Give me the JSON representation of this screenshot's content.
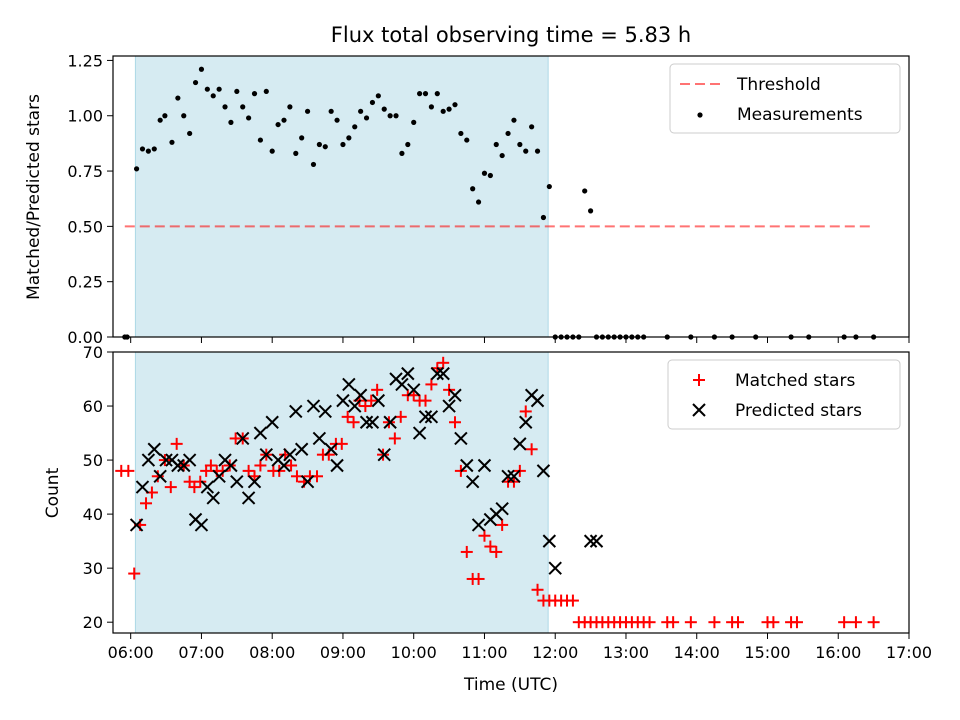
{
  "title": "Flux total observing time = 5.83 h",
  "colors": {
    "shade": "#add8e6",
    "threshold": "#ff0000",
    "measurement": "#000000",
    "matched": "#ff0000",
    "predicted": "#000000"
  },
  "chart_data": [
    {
      "type": "scatter",
      "ylabel": "Matched/Predicted stars",
      "ylim": [
        0,
        1.27
      ],
      "yticks": [
        "0.00",
        "0.25",
        "0.50",
        "0.75",
        "1.00",
        "1.25"
      ],
      "yticks_values": [
        0,
        0.25,
        0.5,
        0.75,
        1.0,
        1.25
      ],
      "xlim": [
        "05:45",
        "17:00"
      ],
      "shaded_span": [
        "06:04",
        "11:54"
      ],
      "legend": {
        "placement": "top-right",
        "items": [
          "Threshold",
          "Measurements"
        ]
      },
      "threshold": {
        "name": "Threshold",
        "value": 0.5,
        "x_start": "05:55",
        "x_end": "16:30",
        "style": "dashed"
      },
      "series": [
        {
          "name": "Measurements",
          "marker": "dot",
          "x": [
            "05:55",
            "05:57",
            "06:05",
            "06:10",
            "06:15",
            "06:20",
            "06:25",
            "06:29",
            "06:35",
            "06:40",
            "06:45",
            "06:50",
            "06:55",
            "07:00",
            "07:05",
            "07:10",
            "07:15",
            "07:20",
            "07:25",
            "07:30",
            "07:35",
            "07:40",
            "07:45",
            "07:50",
            "07:55",
            "08:00",
            "08:05",
            "08:10",
            "08:15",
            "08:20",
            "08:25",
            "08:30",
            "08:35",
            "08:40",
            "08:45",
            "08:50",
            "08:55",
            "09:00",
            "09:05",
            "09:10",
            "09:15",
            "09:20",
            "09:25",
            "09:30",
            "09:35",
            "09:40",
            "09:45",
            "09:50",
            "09:55",
            "10:00",
            "10:05",
            "10:10",
            "10:15",
            "10:20",
            "10:25",
            "10:30",
            "10:35",
            "10:40",
            "10:45",
            "10:50",
            "10:55",
            "11:00",
            "11:05",
            "11:10",
            "11:15",
            "11:20",
            "11:25",
            "11:30",
            "11:35",
            "11:40",
            "11:45",
            "11:50",
            "11:55",
            "12:00",
            "12:05",
            "12:10",
            "12:15",
            "12:20",
            "12:25",
            "12:30",
            "12:35",
            "12:40",
            "12:45",
            "12:50",
            "12:55",
            "13:00",
            "13:05",
            "13:10",
            "13:15",
            "13:35",
            "13:55",
            "14:15",
            "14:30",
            "14:50",
            "15:20",
            "15:35",
            "16:05",
            "16:15",
            "16:30"
          ],
          "y": [
            0,
            0,
            0.76,
            0.85,
            0.84,
            0.85,
            0.98,
            1.0,
            0.88,
            1.08,
            1.0,
            0.92,
            1.15,
            1.21,
            1.12,
            1.09,
            1.12,
            1.04,
            0.97,
            1.11,
            1.04,
            0.99,
            1.1,
            0.89,
            1.11,
            0.84,
            0.96,
            0.98,
            1.04,
            0.83,
            0.9,
            1.02,
            0.78,
            0.87,
            0.86,
            1.02,
            0.98,
            0.87,
            0.9,
            0.95,
            1.02,
            0.99,
            1.06,
            1.09,
            1.03,
            1.0,
            1.0,
            0.83,
            0.87,
            0.97,
            1.1,
            1.1,
            1.04,
            1.1,
            1.02,
            1.03,
            1.05,
            0.92,
            0.89,
            0.67,
            0.61,
            0.74,
            0.73,
            0.87,
            0.82,
            0.92,
            0.98,
            0.87,
            0.84,
            0.95,
            0.84,
            0.54,
            0.68,
            0,
            0,
            0,
            0,
            0,
            0.66,
            0.57,
            0,
            0,
            0,
            0,
            0,
            0,
            0,
            0,
            0,
            0,
            0,
            0,
            0,
            0,
            0,
            0,
            0,
            0,
            0
          ]
        }
      ]
    },
    {
      "type": "scatter",
      "xlabel": "Time (UTC)",
      "ylabel": "Count",
      "ylim": [
        18,
        70
      ],
      "yticks": [
        "20",
        "30",
        "40",
        "50",
        "60",
        "70"
      ],
      "yticks_values": [
        20,
        30,
        40,
        50,
        60,
        70
      ],
      "xlim": [
        "05:45",
        "17:00"
      ],
      "xticks": [
        "06:00",
        "07:00",
        "08:00",
        "09:00",
        "10:00",
        "11:00",
        "12:00",
        "13:00",
        "14:00",
        "15:00",
        "16:00",
        "17:00"
      ],
      "shaded_span": [
        "06:04",
        "11:54"
      ],
      "legend": {
        "placement": "top-right",
        "items": [
          "Matched stars",
          "Predicted stars"
        ]
      },
      "series": [
        {
          "name": "Matched stars",
          "marker": "plus",
          "x": [
            "05:52",
            "05:58",
            "06:03",
            "06:08",
            "06:13",
            "06:18",
            "06:23",
            "06:29",
            "06:34",
            "06:39",
            "06:45",
            "06:50",
            "06:54",
            "06:59",
            "07:04",
            "07:08",
            "07:13",
            "07:18",
            "07:24",
            "07:29",
            "07:35",
            "07:40",
            "07:45",
            "07:50",
            "07:55",
            "08:01",
            "08:06",
            "08:11",
            "08:16",
            "08:21",
            "08:27",
            "08:32",
            "08:38",
            "08:43",
            "08:48",
            "08:54",
            "08:59",
            "09:04",
            "09:09",
            "09:14",
            "09:19",
            "09:24",
            "09:29",
            "09:34",
            "09:39",
            "09:44",
            "09:49",
            "09:55",
            "10:00",
            "10:05",
            "10:10",
            "10:15",
            "10:20",
            "10:25",
            "10:30",
            "10:35",
            "10:40",
            "10:45",
            "10:50",
            "10:55",
            "11:00",
            "11:05",
            "11:10",
            "11:15",
            "11:20",
            "11:25",
            "11:30",
            "11:35",
            "11:40",
            "11:45",
            "11:50",
            "11:55",
            "12:00",
            "12:05",
            "12:10",
            "12:15",
            "12:20",
            "12:25",
            "12:30",
            "12:35",
            "12:40",
            "12:45",
            "12:50",
            "12:55",
            "13:00",
            "13:05",
            "13:10",
            "13:15",
            "13:20",
            "13:35",
            "13:40",
            "13:55",
            "14:15",
            "14:30",
            "14:35",
            "15:00",
            "15:05",
            "15:20",
            "15:25",
            "16:05",
            "16:15",
            "16:30"
          ],
          "y": [
            48,
            48,
            29,
            38,
            42,
            44,
            47,
            50,
            45,
            53,
            49,
            46,
            45,
            46,
            48,
            49,
            48,
            48,
            49,
            54,
            54,
            48,
            47,
            49,
            51,
            48,
            48,
            51,
            49,
            47,
            46,
            47,
            47,
            51,
            51,
            53,
            53,
            58,
            57,
            61,
            60,
            61,
            63,
            51,
            57,
            54,
            58,
            62,
            62,
            61,
            61,
            64,
            67,
            68,
            63,
            57,
            48,
            33,
            28,
            28,
            36,
            34,
            33,
            38,
            46,
            46,
            48,
            59,
            52,
            26,
            24,
            24,
            24,
            24,
            24,
            24,
            20,
            20,
            20,
            20,
            20,
            20,
            20,
            20,
            20,
            20,
            20,
            20,
            20,
            20,
            20,
            20,
            20,
            20,
            20,
            20,
            20,
            20,
            20,
            20,
            20,
            20
          ]
        },
        {
          "name": "Predicted stars",
          "marker": "x",
          "x": [
            "06:05",
            "06:10",
            "06:15",
            "06:20",
            "06:25",
            "06:30",
            "06:35",
            "06:40",
            "06:45",
            "06:50",
            "06:55",
            "07:00",
            "07:05",
            "07:10",
            "07:15",
            "07:20",
            "07:25",
            "07:30",
            "07:35",
            "07:40",
            "07:45",
            "07:50",
            "07:55",
            "08:00",
            "08:05",
            "08:10",
            "08:15",
            "08:20",
            "08:25",
            "08:30",
            "08:35",
            "08:40",
            "08:45",
            "08:50",
            "08:55",
            "09:00",
            "09:05",
            "09:10",
            "09:15",
            "09:20",
            "09:25",
            "09:30",
            "09:35",
            "09:40",
            "09:45",
            "09:50",
            "09:55",
            "10:00",
            "10:05",
            "10:10",
            "10:15",
            "10:20",
            "10:25",
            "10:30",
            "10:35",
            "10:40",
            "10:45",
            "10:50",
            "10:55",
            "11:00",
            "11:05",
            "11:10",
            "11:15",
            "11:20",
            "11:25",
            "11:30",
            "11:35",
            "11:40",
            "11:45",
            "11:50",
            "11:55",
            "12:00",
            "12:30",
            "12:35"
          ],
          "y": [
            38,
            45,
            50,
            52,
            47,
            50,
            50,
            49,
            49,
            50,
            39,
            38,
            45,
            43,
            47,
            50,
            49,
            46,
            54,
            43,
            46,
            55,
            51,
            57,
            50,
            49,
            51,
            59,
            52,
            46,
            60,
            54,
            59,
            52,
            49,
            61,
            64,
            60,
            62,
            57,
            57,
            61,
            51,
            57,
            65,
            64,
            66,
            63,
            55,
            58,
            58,
            66,
            66,
            60,
            62,
            54,
            49,
            46,
            38,
            49,
            39,
            40,
            41,
            47,
            47,
            53,
            57,
            62,
            61,
            48,
            35,
            30,
            35,
            35
          ]
        }
      ]
    }
  ]
}
